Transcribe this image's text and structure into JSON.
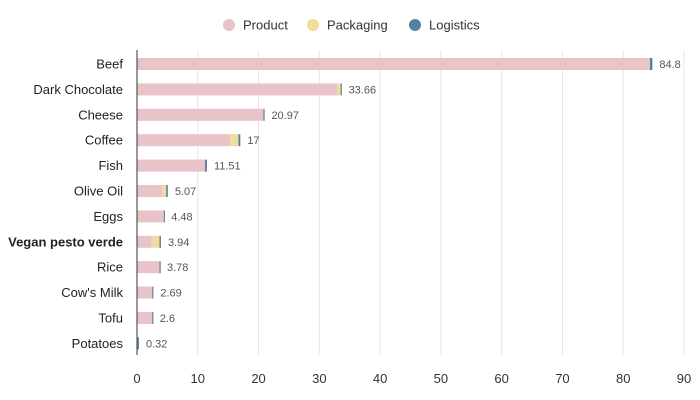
{
  "chart_data": {
    "type": "bar",
    "orientation": "horizontal",
    "stacked": true,
    "title": "",
    "xlabel": "",
    "ylabel": "",
    "xlim": [
      0,
      90
    ],
    "xticks": [
      0,
      10,
      20,
      30,
      40,
      50,
      60,
      70,
      80,
      90
    ],
    "grid": true,
    "legend_position": "top-center",
    "categories": [
      "Beef",
      "Dark Chocolate",
      "Cheese",
      "Coffee",
      "Fish",
      "Olive Oil",
      "Eggs",
      "Vegan pesto verde",
      "Rice",
      "Cow's Milk",
      "Tofu",
      "Potatoes"
    ],
    "highlighted_category": "Vegan pesto verde",
    "series": [
      {
        "name": "Product",
        "color": "#e8c3c8",
        "values": [
          84.4,
          32.9,
          20.8,
          15.3,
          11.2,
          4.1,
          4.3,
          2.4,
          3.7,
          2.5,
          2.5,
          0.1
        ]
      },
      {
        "name": "Packaging",
        "color": "#f0dc9c",
        "values": [
          0.0,
          0.6,
          0.0,
          1.4,
          0.0,
          0.7,
          0.1,
          1.3,
          0.0,
          0.0,
          0.0,
          0.0
        ]
      },
      {
        "name": "Logistics",
        "color": "#56819e",
        "values": [
          0.4,
          0.16,
          0.17,
          0.3,
          0.31,
          0.27,
          0.08,
          0.24,
          0.08,
          0.19,
          0.1,
          0.22
        ]
      }
    ],
    "totals": [
      "84.8",
      "33.66",
      "20.97",
      "17",
      "11.51",
      "5.07",
      "4.48",
      "3.94",
      "3.78",
      "2.69",
      "2.6",
      "0.32"
    ]
  }
}
